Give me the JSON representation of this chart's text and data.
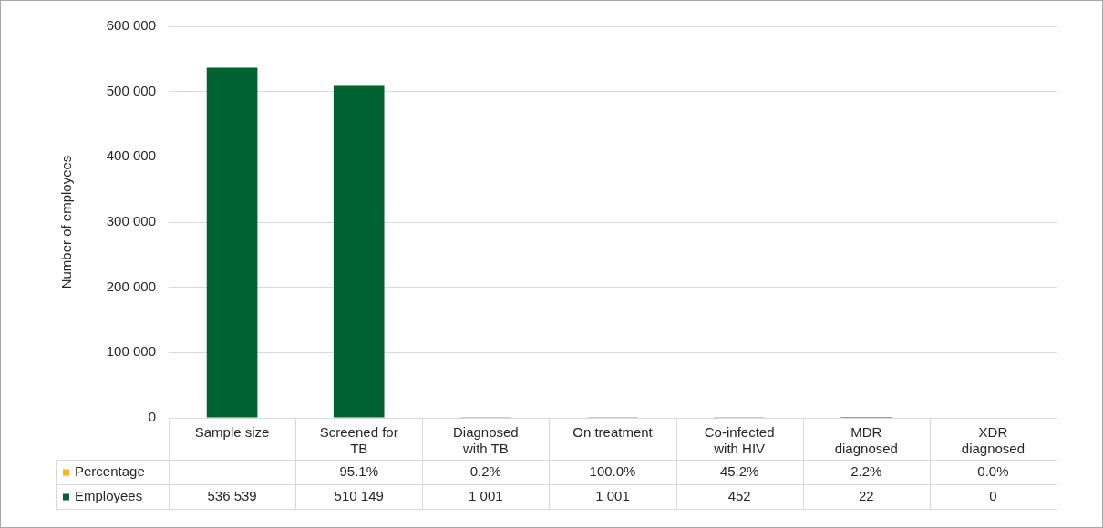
{
  "chart_data": {
    "type": "bar",
    "ylabel": "Number of employees",
    "stacked": true,
    "legend": "bottom",
    "grid": "y",
    "categories": [
      "Sample size",
      "Screened for TB",
      "Diagnosed with TB",
      "On treatment",
      "Co-infected with HIV",
      "MDR diagnosed",
      "XDR diagnosed"
    ],
    "series": [
      {
        "name": "Employees",
        "color": "#006331",
        "values": [
          536539,
          510149,
          1001,
          1001,
          452,
          22,
          0
        ],
        "value_labels": [
          "536 539",
          "510 149",
          "1 001",
          "1 001",
          "452",
          "22",
          "0"
        ]
      },
      {
        "name": "Percentage",
        "color": "#ffb21a",
        "values": [
          null,
          95.1,
          0.2,
          100.0,
          45.2,
          2.2,
          0.0
        ],
        "value_labels": [
          null,
          "95.1%",
          "0.2%",
          "100.0%",
          "45.2%",
          "2.2%",
          "0.0%"
        ]
      }
    ],
    "ylim": [
      0,
      600000
    ],
    "yticks": [
      {
        "value": 0,
        "label": "0"
      },
      {
        "value": 100000,
        "label": "100 000"
      },
      {
        "value": 200000,
        "label": "200 000"
      },
      {
        "value": 300000,
        "label": "300 000"
      },
      {
        "value": 400000,
        "label": "400 000"
      },
      {
        "value": 500000,
        "label": "500 000"
      },
      {
        "value": 600000,
        "label": "600 000"
      }
    ]
  }
}
